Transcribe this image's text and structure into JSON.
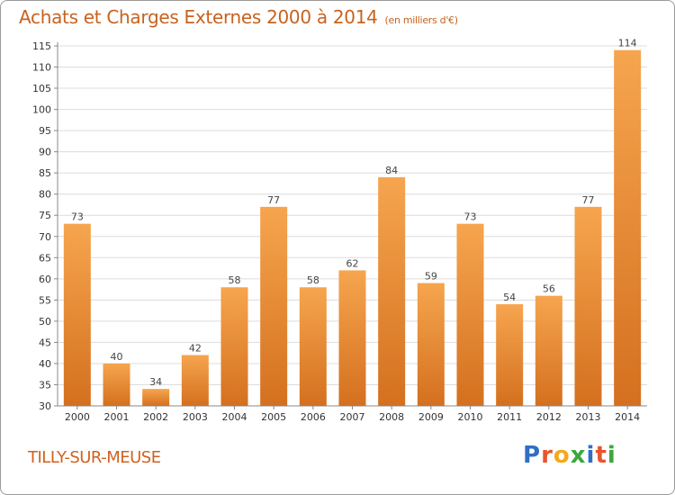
{
  "chart": {
    "title": "Achats et Charges Externes 2000 à 2014",
    "subtitle": "(en milliers d'€)"
  },
  "footer": {
    "location": "TILLY-SUR-MEUSE",
    "logo_letters": [
      "P",
      "r",
      "o",
      "x",
      "i",
      "t",
      "i"
    ],
    "logo_colors": [
      "#2f6fc4",
      "#e8552d",
      "#f2a91c",
      "#3aa83a",
      "#2f6fc4",
      "#e8552d",
      "#3aa83a"
    ]
  },
  "chart_data": {
    "type": "bar",
    "title": "Achats et Charges Externes 2000 à 2014",
    "subtitle": "(en milliers d'€)",
    "categories": [
      "2000",
      "2001",
      "2002",
      "2003",
      "2004",
      "2005",
      "2006",
      "2007",
      "2008",
      "2009",
      "2010",
      "2011",
      "2012",
      "2013",
      "2014"
    ],
    "values": [
      73,
      40,
      34,
      42,
      58,
      77,
      58,
      62,
      84,
      59,
      73,
      54,
      56,
      77,
      114
    ],
    "ylim": [
      30,
      115
    ],
    "yticks": [
      30,
      35,
      40,
      45,
      50,
      55,
      60,
      65,
      70,
      75,
      80,
      85,
      90,
      95,
      100,
      105,
      110,
      115
    ],
    "grid": true,
    "bar_color_top": "#f6a54e",
    "bar_color_bottom": "#d4701f",
    "xlabel": "",
    "ylabel": ""
  }
}
